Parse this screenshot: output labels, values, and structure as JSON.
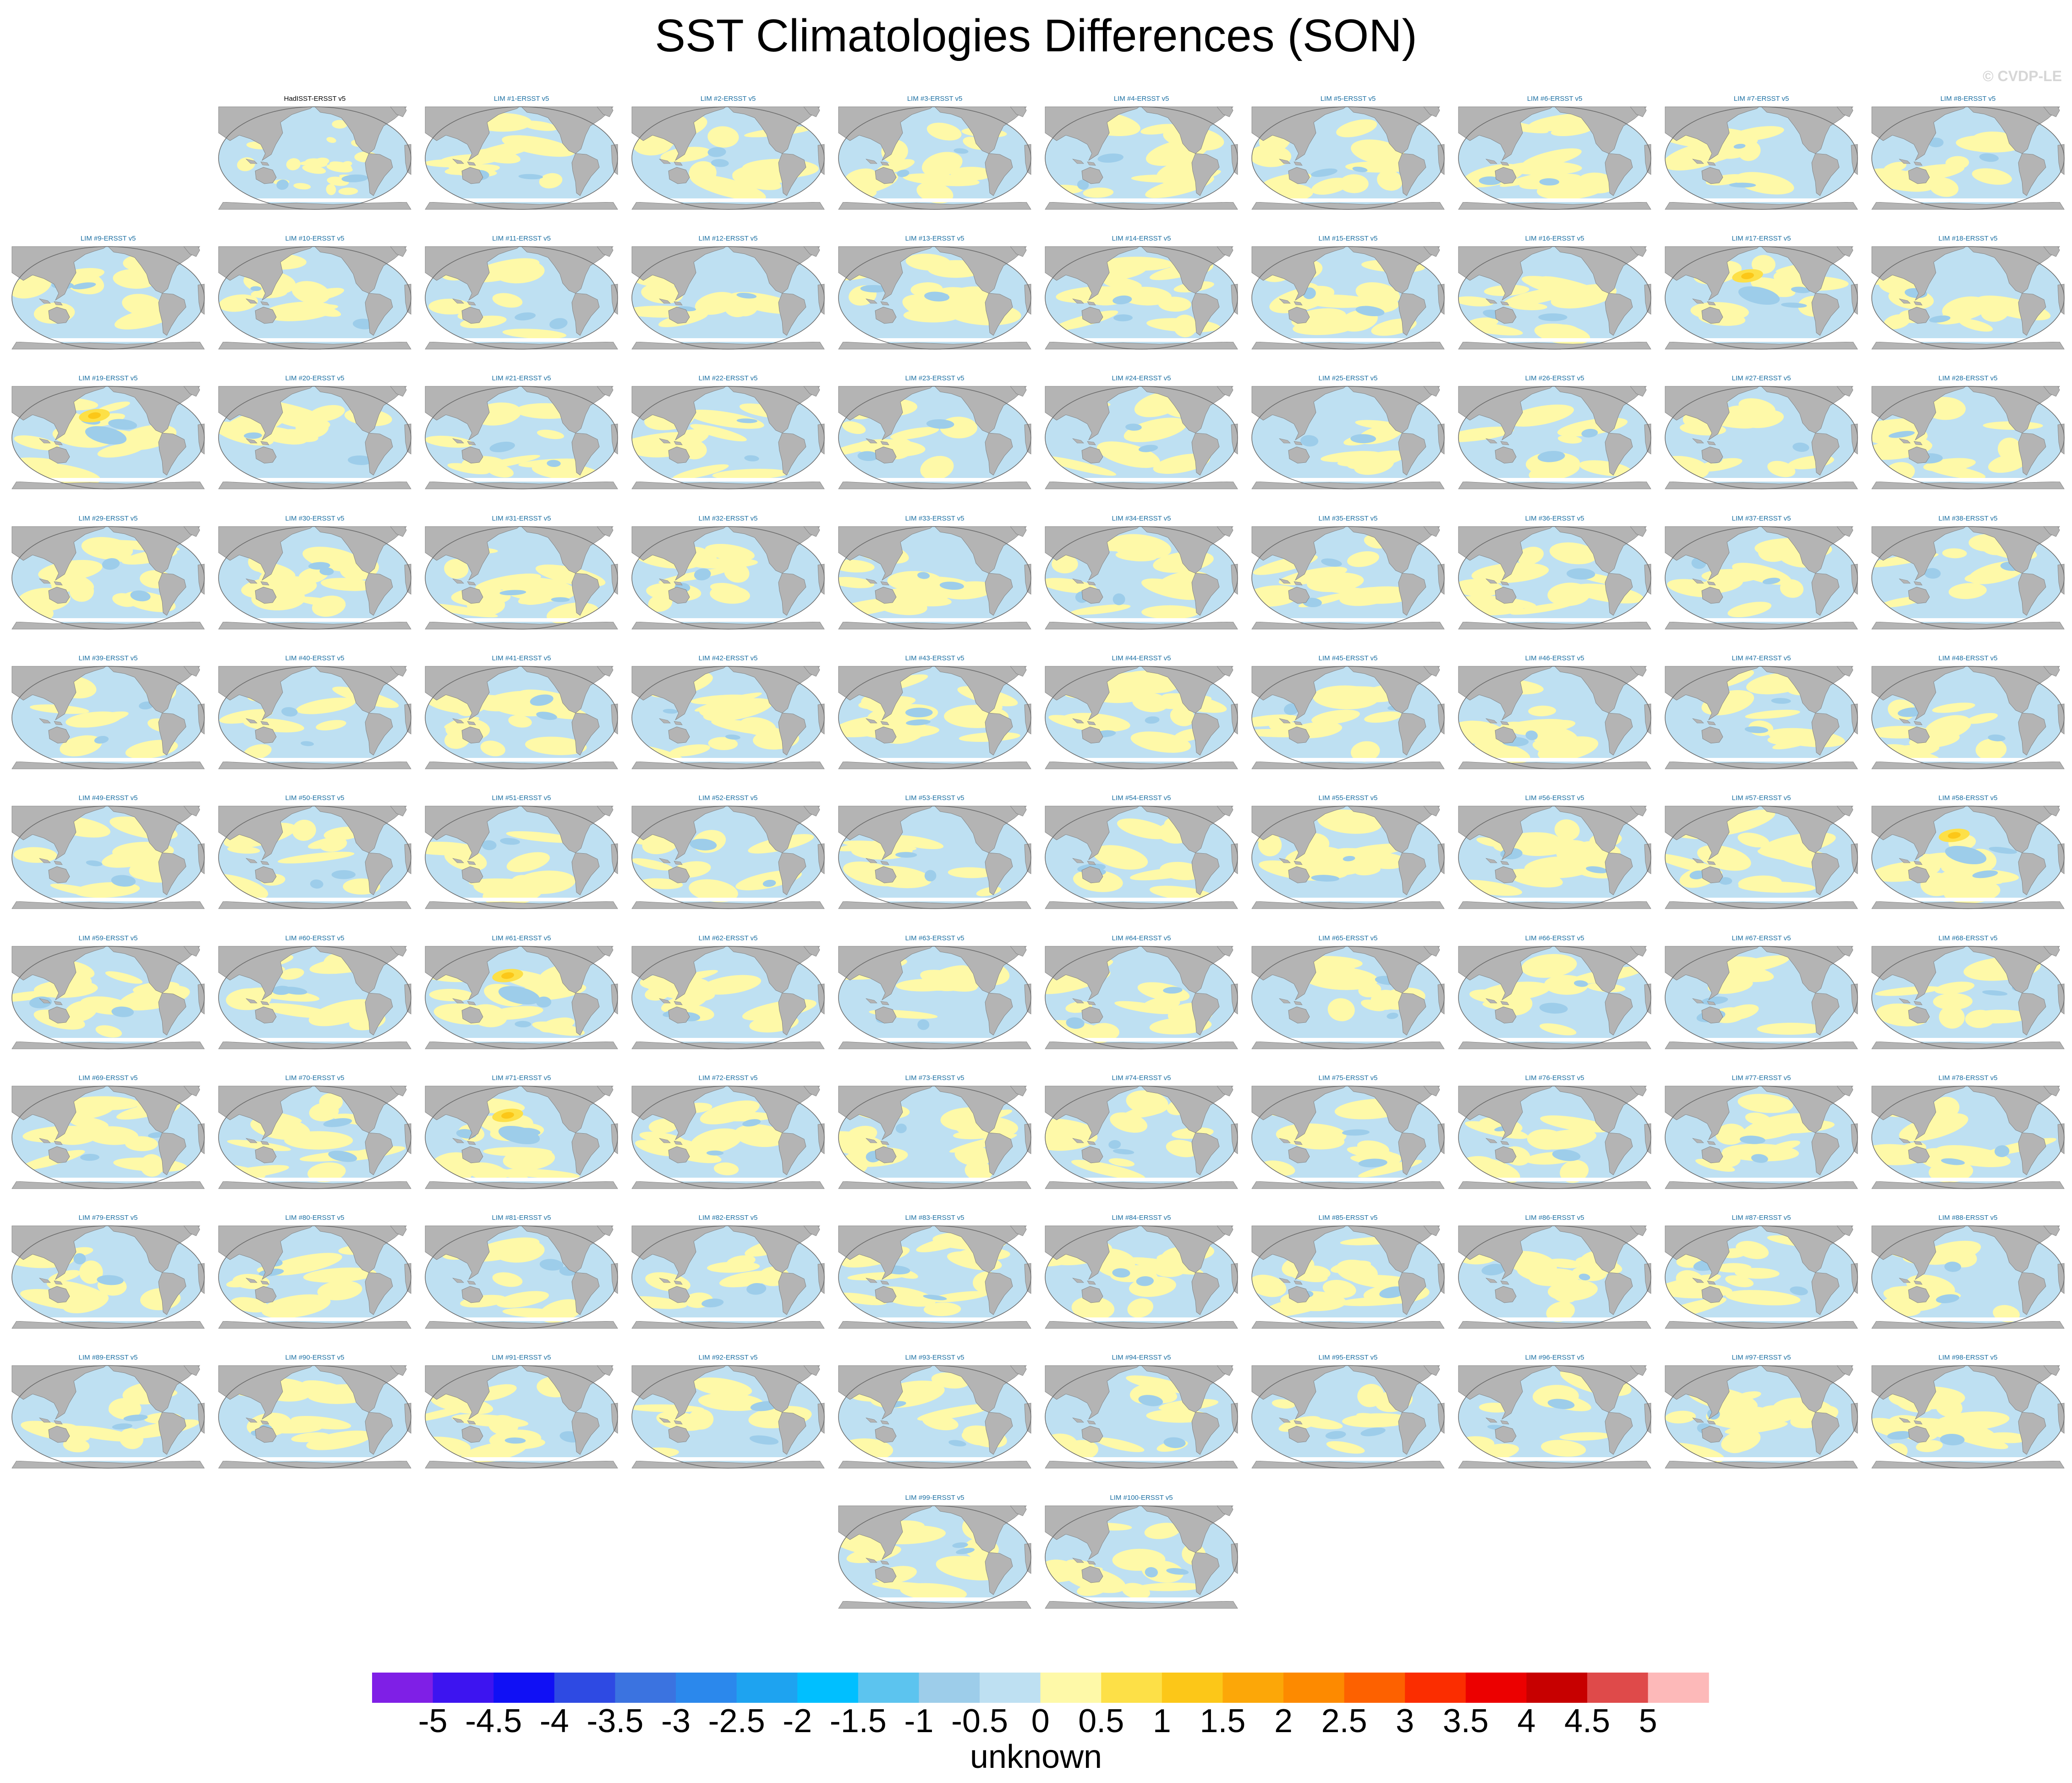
{
  "title": "SST Climatologies Differences (SON)",
  "watermark": "© CVDP-LE",
  "chart_data": {
    "type": "heatmap",
    "title": "SST Climatologies Differences (SON)",
    "map_projection": "Robinson (Pacific-centered)",
    "panel_titles": [
      "HadISST-ERSST v5",
      "LIM #1-ERSST v5",
      "LIM #2-ERSST v5",
      "LIM #3-ERSST v5",
      "LIM #4-ERSST v5",
      "LIM #5-ERSST v5",
      "LIM #6-ERSST v5",
      "LIM #7-ERSST v5",
      "LIM #8-ERSST v5",
      "LIM #9-ERSST v5",
      "LIM #10-ERSST v5",
      "LIM #11-ERSST v5",
      "LIM #12-ERSST v5",
      "LIM #13-ERSST v5",
      "LIM #14-ERSST v5",
      "LIM #15-ERSST v5",
      "LIM #16-ERSST v5",
      "LIM #17-ERSST v5",
      "LIM #18-ERSST v5",
      "LIM #19-ERSST v5",
      "LIM #20-ERSST v5",
      "LIM #21-ERSST v5",
      "LIM #22-ERSST v5",
      "LIM #23-ERSST v5",
      "LIM #24-ERSST v5",
      "LIM #25-ERSST v5",
      "LIM #26-ERSST v5",
      "LIM #27-ERSST v5",
      "LIM #28-ERSST v5",
      "LIM #29-ERSST v5",
      "LIM #30-ERSST v5",
      "LIM #31-ERSST v5",
      "LIM #32-ERSST v5",
      "LIM #33-ERSST v5",
      "LIM #34-ERSST v5",
      "LIM #35-ERSST v5",
      "LIM #36-ERSST v5",
      "LIM #37-ERSST v5",
      "LIM #38-ERSST v5",
      "LIM #39-ERSST v5",
      "LIM #40-ERSST v5",
      "LIM #41-ERSST v5",
      "LIM #42-ERSST v5",
      "LIM #43-ERSST v5",
      "LIM #44-ERSST v5",
      "LIM #45-ERSST v5",
      "LIM #46-ERSST v5",
      "LIM #47-ERSST v5",
      "LIM #48-ERSST v5",
      "LIM #49-ERSST v5",
      "LIM #50-ERSST v5",
      "LIM #51-ERSST v5",
      "LIM #52-ERSST v5",
      "LIM #53-ERSST v5",
      "LIM #54-ERSST v5",
      "LIM #55-ERSST v5",
      "LIM #56-ERSST v5",
      "LIM #57-ERSST v5",
      "LIM #58-ERSST v5",
      "LIM #59-ERSST v5",
      "LIM #60-ERSST v5",
      "LIM #61-ERSST v5",
      "LIM #62-ERSST v5",
      "LIM #63-ERSST v5",
      "LIM #64-ERSST v5",
      "LIM #65-ERSST v5",
      "LIM #66-ERSST v5",
      "LIM #67-ERSST v5",
      "LIM #68-ERSST v5",
      "LIM #69-ERSST v5",
      "LIM #70-ERSST v5",
      "LIM #71-ERSST v5",
      "LIM #72-ERSST v5",
      "LIM #73-ERSST v5",
      "LIM #74-ERSST v5",
      "LIM #75-ERSST v5",
      "LIM #76-ERSST v5",
      "LIM #77-ERSST v5",
      "LIM #78-ERSST v5",
      "LIM #79-ERSST v5",
      "LIM #80-ERSST v5",
      "LIM #81-ERSST v5",
      "LIM #82-ERSST v5",
      "LIM #83-ERSST v5",
      "LIM #84-ERSST v5",
      "LIM #85-ERSST v5",
      "LIM #86-ERSST v5",
      "LIM #87-ERSST v5",
      "LIM #88-ERSST v5",
      "LIM #89-ERSST v5",
      "LIM #90-ERSST v5",
      "LIM #91-ERSST v5",
      "LIM #92-ERSST v5",
      "LIM #93-ERSST v5",
      "LIM #94-ERSST v5",
      "LIM #95-ERSST v5",
      "LIM #96-ERSST v5",
      "LIM #97-ERSST v5",
      "LIM #98-ERSST v5",
      "LIM #99-ERSST v5",
      "LIM #100-ERSST v5"
    ],
    "hotspot_panels": [
      "LIM #17-ERSST v5",
      "LIM #19-ERSST v5",
      "LIM #58-ERSST v5",
      "LIM #61-ERSST v5",
      "LIM #71-ERSST v5"
    ],
    "colorbar": {
      "label": "unknown",
      "levels": [
        "-5",
        "-4.5",
        "-4",
        "-3.5",
        "-3",
        "-2.5",
        "-2",
        "-1.5",
        "-1",
        "-0.5",
        "0",
        "0.5",
        "1",
        "1.5",
        "2",
        "2.5",
        "3",
        "3.5",
        "4",
        "4.5",
        "5"
      ],
      "colors": [
        "#7f1fe6",
        "#3d14f0",
        "#1010f5",
        "#2e4ae3",
        "#3b73e0",
        "#2b88ec",
        "#1ea3f0",
        "#00bfff",
        "#5cc4ef",
        "#9dcdea",
        "#bee0f2",
        "#fef9a8",
        "#fde047",
        "#fcc718",
        "#fca708",
        "#fd8a00",
        "#fd6100",
        "#fb2d00",
        "#ec0000",
        "#c70000",
        "#df4a4a",
        "#fdb9b9"
      ]
    },
    "colors": {
      "land": "#b4b4b4",
      "ocean_neg_small": "#bee0f2",
      "ocean_neg_mod": "#9dcdea",
      "ocean_pos_small": "#fef9a8",
      "ocean_pos_mod": "#fde047",
      "ocean_pos_high": "#fcc718",
      "panel_title_color": "#1b6fa2",
      "first_panel_title_color": "#000000"
    }
  }
}
